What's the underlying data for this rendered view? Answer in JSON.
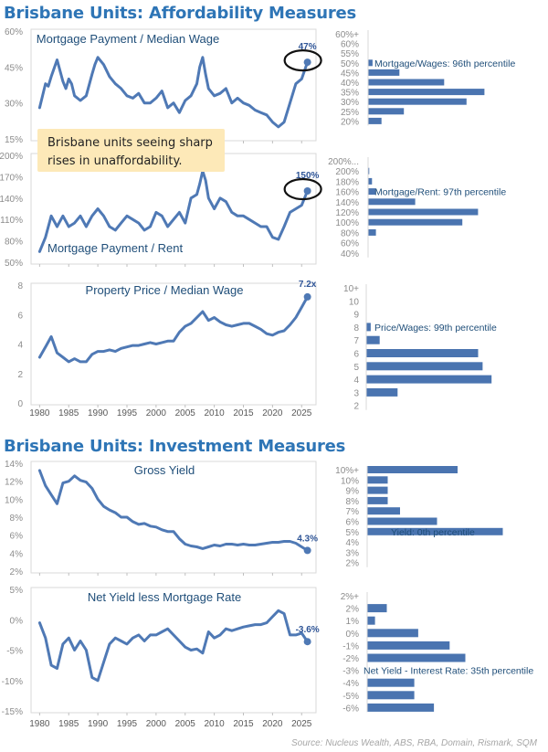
{
  "titles": {
    "affordability": "Brisbane Units: Affordability Measures",
    "investment": "Brisbane Units: Investment Measures"
  },
  "source": "Source: Nucleus Wealth, ABS, RBA, Domain, Rismark, SQM",
  "colors": {
    "line": "#4f79b5",
    "bar": "#4a74b0",
    "title": "#2e75b6",
    "grid": "#d9d9d9",
    "axis": "#595959",
    "callout": "#fde9b8"
  },
  "x_ticks": [
    "1980",
    "1985",
    "1990",
    "1995",
    "2000",
    "2005",
    "2010",
    "2015",
    "2020",
    "2025"
  ],
  "chart_data": [
    {
      "type": "line",
      "title": "Mortgage Payment / Median Wage",
      "ylim": [
        15,
        60
      ],
      "y_ticks": [
        "60%",
        "45%",
        "30%",
        "15%"
      ],
      "y_tick_values": [
        60,
        45,
        30,
        15
      ],
      "last_label": "47%",
      "highlight": "circle",
      "series": [
        {
          "x": [
            1980,
            1980.5,
            1981,
            1981.5,
            1982,
            1983,
            1984,
            1984.5,
            1985,
            1985.5,
            1986,
            1987,
            1988,
            1989,
            1989.5,
            1990,
            1991,
            1992,
            1993,
            1994,
            1995,
            1996,
            1997,
            1998,
            1999,
            2000,
            2001,
            2002,
            2003,
            2004,
            2005,
            2006,
            2007,
            2007.5,
            2008,
            2008.5,
            2009,
            2010,
            2011,
            2012,
            2013,
            2014,
            2015,
            2016,
            2017,
            2018,
            2019,
            2020,
            2021,
            2022,
            2023,
            2024,
            2025,
            2026
          ],
          "values": [
            28,
            33,
            38,
            37,
            41,
            48,
            39,
            36,
            40,
            38,
            33,
            31,
            33,
            42,
            46,
            49,
            46,
            41,
            38,
            36,
            33,
            32,
            34,
            30,
            30,
            32,
            35,
            28,
            30,
            26,
            31,
            33,
            38,
            45,
            49,
            42,
            36,
            33,
            34,
            36,
            30,
            32,
            30,
            29,
            27,
            26,
            25,
            22,
            20,
            22,
            30,
            38,
            40,
            47
          ]
        }
      ]
    },
    {
      "type": "line",
      "title": "Mortgage Payment / Rent",
      "ylim": [
        50,
        200
      ],
      "y_ticks": [
        "200%",
        "170%",
        "140%",
        "110%",
        "80%",
        "50%"
      ],
      "y_tick_values": [
        200,
        170,
        140,
        110,
        80,
        50
      ],
      "last_label": "150%",
      "highlight": "circle",
      "callout": "Brisbane units seeing sharp rises in unaffordability.",
      "series": [
        {
          "x": [
            1980,
            1981,
            1982,
            1983,
            1984,
            1985,
            1986,
            1987,
            1988,
            1989,
            1990,
            1991,
            1992,
            1993,
            1994,
            1995,
            1996,
            1997,
            1998,
            1999,
            2000,
            2001,
            2002,
            2003,
            2004,
            2005,
            2006,
            2007,
            2007.5,
            2008,
            2008.5,
            2009,
            2010,
            2011,
            2012,
            2013,
            2014,
            2015,
            2016,
            2017,
            2018,
            2019,
            2020,
            2021,
            2022,
            2023,
            2024,
            2025,
            2026
          ],
          "values": [
            65,
            85,
            115,
            100,
            115,
            100,
            105,
            115,
            100,
            115,
            125,
            115,
            100,
            95,
            105,
            115,
            110,
            105,
            95,
            100,
            120,
            115,
            100,
            110,
            120,
            105,
            140,
            145,
            160,
            178,
            165,
            140,
            125,
            140,
            135,
            120,
            115,
            115,
            110,
            105,
            100,
            100,
            85,
            82,
            100,
            120,
            125,
            130,
            150
          ]
        }
      ]
    },
    {
      "type": "line",
      "title": "Property Price / Median Wage",
      "ylim": [
        0,
        8
      ],
      "y_ticks": [
        "8",
        "6",
        "4",
        "2",
        "0"
      ],
      "y_tick_values": [
        8,
        6,
        4,
        2,
        0
      ],
      "last_label": "7.2x",
      "highlight": "dot",
      "series": [
        {
          "x": [
            1980,
            1981,
            1982,
            1983,
            1984,
            1985,
            1986,
            1987,
            1988,
            1989,
            1990,
            1991,
            1992,
            1993,
            1994,
            1995,
            1996,
            1997,
            1998,
            1999,
            2000,
            2001,
            2002,
            2003,
            2004,
            2005,
            2006,
            2007,
            2008,
            2009,
            2010,
            2011,
            2012,
            2013,
            2014,
            2015,
            2016,
            2017,
            2018,
            2019,
            2020,
            2021,
            2022,
            2023,
            2024,
            2025,
            2026
          ],
          "values": [
            3.1,
            3.8,
            4.5,
            3.4,
            3.1,
            2.8,
            3.0,
            2.8,
            2.8,
            3.3,
            3.5,
            3.5,
            3.6,
            3.5,
            3.7,
            3.8,
            3.9,
            3.9,
            4.0,
            4.1,
            4.0,
            4.1,
            4.2,
            4.2,
            4.8,
            5.2,
            5.4,
            5.8,
            6.2,
            5.6,
            5.8,
            5.5,
            5.3,
            5.2,
            5.3,
            5.4,
            5.4,
            5.2,
            5.0,
            4.7,
            4.6,
            4.8,
            4.9,
            5.3,
            5.8,
            6.5,
            7.2
          ]
        }
      ]
    },
    {
      "type": "line",
      "title": "Gross Yield",
      "ylim": [
        2,
        14
      ],
      "y_ticks": [
        "14%",
        "12%",
        "10%",
        "8%",
        "6%",
        "4%",
        "2%"
      ],
      "y_tick_values": [
        14,
        12,
        10,
        8,
        6,
        4,
        2
      ],
      "last_label": "4.3%",
      "highlight": "dot",
      "series": [
        {
          "x": [
            1980,
            1981,
            1982,
            1983,
            1984,
            1985,
            1986,
            1987,
            1988,
            1989,
            1990,
            1991,
            1992,
            1993,
            1994,
            1995,
            1996,
            1997,
            1998,
            1999,
            2000,
            2001,
            2002,
            2003,
            2004,
            2005,
            2006,
            2007,
            2008,
            2009,
            2010,
            2011,
            2012,
            2013,
            2014,
            2015,
            2016,
            2017,
            2018,
            2019,
            2020,
            2021,
            2022,
            2023,
            2024,
            2025,
            2026
          ],
          "values": [
            13.2,
            11.5,
            10.5,
            9.5,
            11.8,
            12.0,
            12.6,
            12.1,
            11.9,
            11.2,
            10.0,
            9.2,
            8.8,
            8.5,
            8.0,
            8.0,
            7.5,
            7.2,
            7.3,
            7.0,
            6.9,
            6.6,
            6.4,
            6.4,
            5.6,
            5.0,
            4.8,
            4.7,
            4.5,
            4.7,
            4.9,
            4.8,
            5.0,
            5.0,
            4.9,
            5.0,
            4.9,
            4.9,
            5.0,
            5.1,
            5.2,
            5.2,
            5.3,
            5.3,
            5.1,
            4.7,
            4.3
          ]
        }
      ]
    },
    {
      "type": "line",
      "title": "Net Yield less Mortgage Rate",
      "ylim": [
        -15,
        5
      ],
      "y_ticks": [
        "5%",
        "0%",
        "-5%",
        "-10%",
        "-15%"
      ],
      "y_tick_values": [
        5,
        0,
        -5,
        -10,
        -15
      ],
      "last_label": "-3.6%",
      "highlight": "dot",
      "series": [
        {
          "x": [
            1980,
            1981,
            1982,
            1983,
            1984,
            1985,
            1986,
            1987,
            1988,
            1989,
            1990,
            1991,
            1992,
            1993,
            1994,
            1995,
            1996,
            1997,
            1998,
            1999,
            2000,
            2001,
            2002,
            2003,
            2004,
            2005,
            2006,
            2007,
            2008,
            2009,
            2010,
            2011,
            2012,
            2013,
            2014,
            2015,
            2016,
            2017,
            2018,
            2019,
            2020,
            2021,
            2022,
            2023,
            2024,
            2025,
            2026
          ],
          "values": [
            -0.5,
            -3,
            -7.5,
            -8,
            -4,
            -3,
            -5,
            -3.5,
            -5,
            -9.5,
            -10,
            -7,
            -4,
            -3,
            -3.5,
            -4,
            -3,
            -2.5,
            -3.5,
            -2.5,
            -2.5,
            -2,
            -1.5,
            -2.5,
            -3.5,
            -4.5,
            -5,
            -4.8,
            -5.5,
            -2,
            -3,
            -2.5,
            -1.5,
            -1.8,
            -1.5,
            -1.2,
            -1.0,
            -0.8,
            -0.8,
            -0.5,
            0.5,
            1.5,
            1.0,
            -2.5,
            -2.5,
            -2.2,
            -3.6
          ]
        }
      ]
    },
    {
      "type": "bar",
      "orientation": "horizontal",
      "categories": [
        "60%+",
        "60%",
        "55%",
        "50%",
        "45%",
        "40%",
        "35%",
        "30%",
        "25%",
        "20%"
      ],
      "values": [
        0,
        0,
        0,
        1,
        7,
        17,
        26,
        22,
        8,
        3
      ],
      "xlim": [
        0,
        30
      ],
      "annotation": "Mortgage/Wages: 96th percentile",
      "annotation_row": 3
    },
    {
      "type": "bar",
      "orientation": "horizontal",
      "categories": [
        "200%...",
        "200%",
        "180%",
        "160%",
        "140%",
        "120%",
        "100%",
        "80%",
        "60%",
        "40%"
      ],
      "values": [
        0,
        0.3,
        1,
        2,
        12,
        28,
        24,
        2,
        0,
        0
      ],
      "xlim": [
        0,
        30
      ],
      "annotation": "Mortgage/Rent: 97th percentile",
      "annotation_row": 3
    },
    {
      "type": "bar",
      "orientation": "horizontal",
      "categories": [
        "10+",
        "10",
        "9",
        "8",
        "7",
        "6",
        "5",
        "4",
        "3",
        "2"
      ],
      "values": [
        0,
        0,
        0,
        1,
        3,
        25,
        26,
        28,
        7,
        0
      ],
      "xlim": [
        0,
        30
      ],
      "annotation": "Price/Wages: 99th percentile",
      "annotation_row": 3
    },
    {
      "type": "bar",
      "orientation": "horizontal",
      "categories": [
        "10%+",
        "10%",
        "9%",
        "8%",
        "7%",
        "6%",
        "5%",
        "4%",
        "3%",
        "2%"
      ],
      "values": [
        22,
        5,
        5,
        5,
        8,
        17,
        33,
        0,
        0,
        0
      ],
      "xlim": [
        0,
        35
      ],
      "annotation": "Yield: 0th percentile",
      "annotation_row": 6
    },
    {
      "type": "bar",
      "orientation": "horizontal",
      "categories": [
        "2%+",
        "2%",
        "1%",
        "0%",
        "-1%",
        "-2%",
        "-3%",
        "-4%",
        "-5%",
        "-6%"
      ],
      "values": [
        0,
        5,
        2,
        13,
        21,
        25,
        0,
        12,
        12,
        17
      ],
      "xlim": [
        0,
        30
      ],
      "annotation": "Net Yield - Interest Rate: 35th percentile",
      "annotation_row": 6
    }
  ]
}
